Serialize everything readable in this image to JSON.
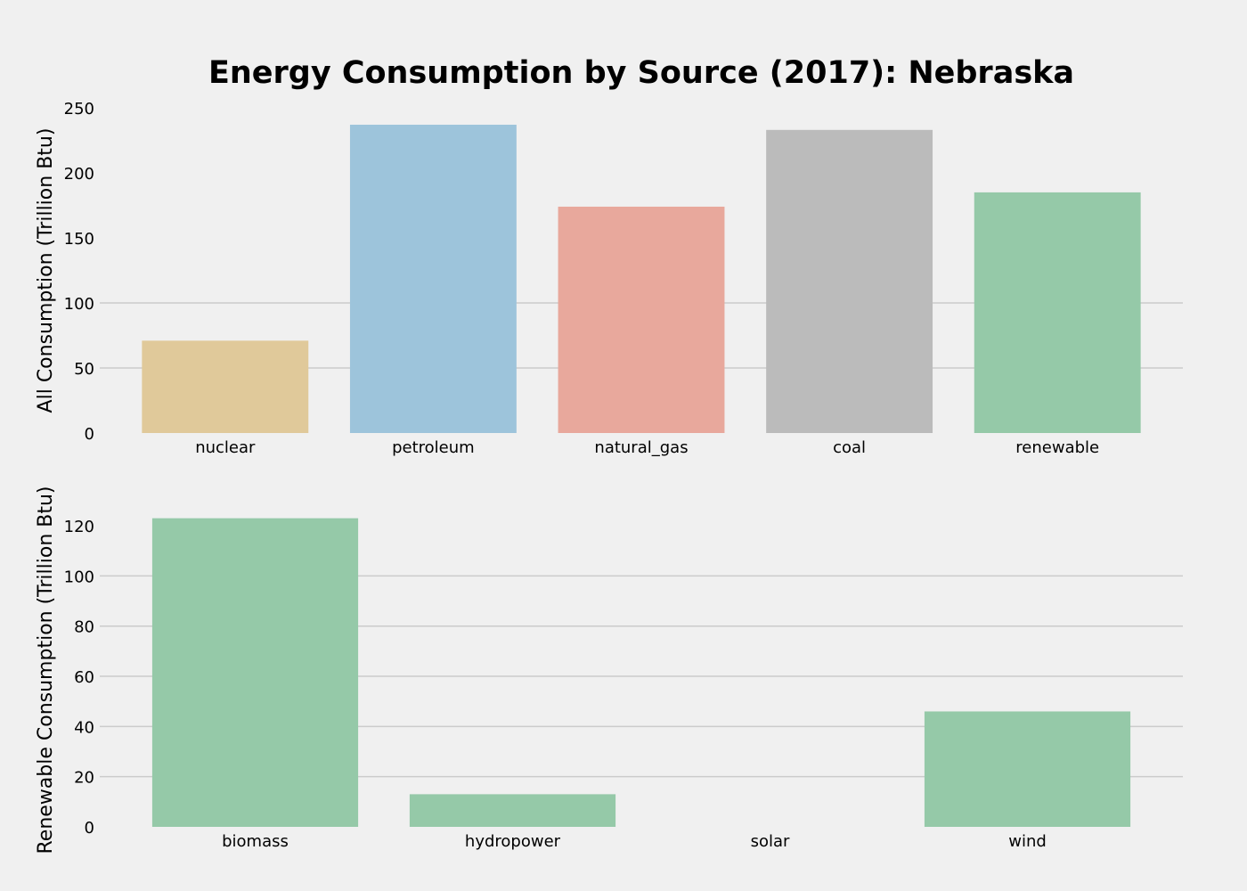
{
  "chart_data": [
    {
      "type": "bar",
      "title": "Energy Consumption by Source (2017): Nebraska",
      "xlabel": "",
      "ylabel": "All Consumption (Trillion Btu)",
      "ylim": [
        0,
        250
      ],
      "yticks": [
        0,
        50,
        100,
        150,
        200,
        250
      ],
      "ytick_labels": [
        "0",
        "50",
        "100",
        "150",
        "200",
        "250"
      ],
      "grid": true,
      "categories": [
        "nuclear",
        "petroleum",
        "natural_gas",
        "coal",
        "renewable"
      ],
      "values": [
        71,
        237,
        174,
        233,
        185
      ],
      "colors": [
        "#e0c99a",
        "#9dc4db",
        "#e8a89c",
        "#bbbbbb",
        "#95c9a8"
      ]
    },
    {
      "type": "bar",
      "title": "",
      "xlabel": "",
      "ylabel": "Renewable Consumption (Trillion Btu)",
      "ylim": [
        0,
        125
      ],
      "yticks": [
        0,
        20,
        40,
        60,
        80,
        100,
        120
      ],
      "ytick_labels": [
        "0",
        "20",
        "40",
        "60",
        "80",
        "100",
        "120"
      ],
      "grid": true,
      "categories": [
        "biomass",
        "hydropower",
        "solar",
        "wind"
      ],
      "values": [
        123,
        13,
        0,
        46
      ],
      "colors": [
        "#95c9a8",
        "#95c9a8",
        "#95c9a8",
        "#95c9a8"
      ]
    }
  ]
}
